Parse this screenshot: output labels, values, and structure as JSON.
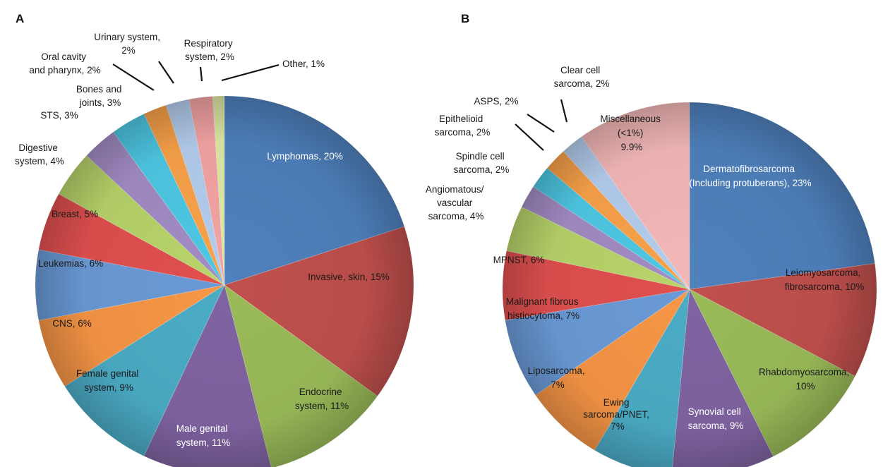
{
  "chart_data": [
    {
      "type": "pie",
      "panel": "A",
      "slices": [
        {
          "label": "Lymphomas, 20%",
          "value": 20,
          "color": "#4f81bd",
          "text_color": "#ffffff"
        },
        {
          "label": "Invasive, skin, 15%",
          "value": 15,
          "color": "#c0504d",
          "text_color": "#1a1a1a"
        },
        {
          "label": "Endocrine system, 11%",
          "value": 11,
          "color": "#9bbb59",
          "text_color": "#1a1a1a"
        },
        {
          "label": "Male genital system, 11%",
          "value": 11,
          "color": "#8064a2",
          "text_color": "#ffffff"
        },
        {
          "label": "Female genital system, 9%",
          "value": 9,
          "color": "#4bacc6",
          "text_color": "#1a1a1a"
        },
        {
          "label": "CNS, 6%",
          "value": 6,
          "color": "#f79646",
          "text_color": "#1a1a1a"
        },
        {
          "label": "Leukemias, 6%",
          "value": 6,
          "color": "#6a9ad6",
          "text_color": "#1a1a1a"
        },
        {
          "label": "Breast, 5%",
          "value": 5,
          "color": "#e0504f",
          "text_color": "#1a1a1a"
        },
        {
          "label": "Digestive system, 4%",
          "value": 4,
          "color": "#b8d46a",
          "text_color": "#1a1a1a"
        },
        {
          "label": "STS, 3%",
          "value": 3,
          "color": "#a28cc4",
          "text_color": "#1a1a1a"
        },
        {
          "label": "Bones and joints, 3%",
          "value": 3,
          "color": "#4ec8e4",
          "text_color": "#1a1a1a"
        },
        {
          "label": "Oral cavity and pharynx, 2%",
          "value": 2,
          "color": "#f9a24a",
          "text_color": "#1a1a1a"
        },
        {
          "label": "Urinary system, 2%",
          "value": 2,
          "color": "#b4cdee",
          "text_color": "#1a1a1a"
        },
        {
          "label": "Respiratory system, 2%",
          "value": 2,
          "color": "#f4a4a4",
          "text_color": "#1a1a1a"
        },
        {
          "label": "Other, 1%",
          "value": 1,
          "color": "#dde9a6",
          "text_color": "#1a1a1a"
        }
      ]
    },
    {
      "type": "pie",
      "panel": "B",
      "slices": [
        {
          "label": "Dermatofibrosarcoma (Including protuberans), 23%",
          "value": 23,
          "color": "#4f81bd",
          "text_color": "#ffffff"
        },
        {
          "label": "Leiomyosarcoma, fibrosarcoma, 10%",
          "value": 10,
          "color": "#c0504d",
          "text_color": "#1a1a1a"
        },
        {
          "label": "Rhabdomyosarcoma, 10%",
          "value": 10,
          "color": "#9bbb59",
          "text_color": "#1a1a1a"
        },
        {
          "label": "Synovial cell sarcoma, 9%",
          "value": 9,
          "color": "#8064a2",
          "text_color": "#ffffff"
        },
        {
          "label": "Ewing sarcoma/PNET, 7%",
          "value": 7,
          "color": "#4bacc6",
          "text_color": "#1a1a1a"
        },
        {
          "label": "Liposarcoma, 7%",
          "value": 7,
          "color": "#f79646",
          "text_color": "#1a1a1a"
        },
        {
          "label": "Malignant fibrous histiocytoma, 7%",
          "value": 7,
          "color": "#6a9ad6",
          "text_color": "#1a1a1a"
        },
        {
          "label": "MPNST, 6%",
          "value": 6,
          "color": "#e0504f",
          "text_color": "#1a1a1a"
        },
        {
          "label": "Angiomatous/ vascular sarcoma, 4%",
          "value": 4,
          "color": "#b8d46a",
          "text_color": "#1a1a1a"
        },
        {
          "label": "Spindle cell sarcoma, 2%",
          "value": 2,
          "color": "#a28cc4",
          "text_color": "#1a1a1a"
        },
        {
          "label": "Epithelioid sarcoma, 2%",
          "value": 2,
          "color": "#4ec8e4",
          "text_color": "#1a1a1a"
        },
        {
          "label": "ASPS, 2%",
          "value": 2,
          "color": "#f9a24a",
          "text_color": "#1a1a1a"
        },
        {
          "label": "Clear cell sarcoma, 2%",
          "value": 2,
          "color": "#b4cdee",
          "text_color": "#1a1a1a"
        },
        {
          "label": "Miscellaneous (<1%) 9.9%",
          "value": 9.9,
          "color": "#f4b8b8",
          "text_color": "#1a1a1a"
        }
      ]
    }
  ]
}
